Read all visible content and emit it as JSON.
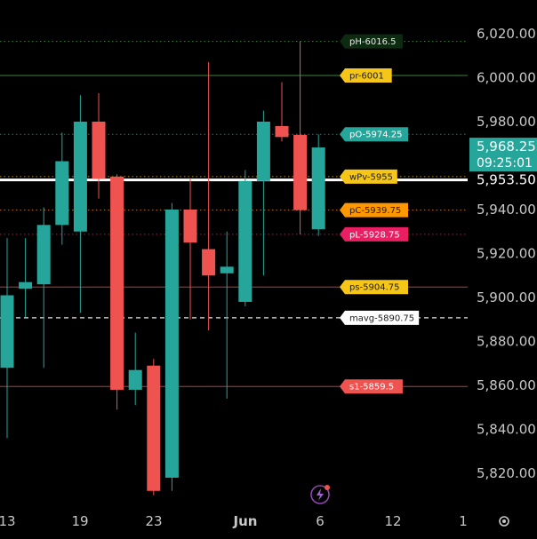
{
  "chart_data": {
    "type": "candlestick",
    "x_ticks": [
      "13",
      "19",
      "23",
      "Jun",
      "6",
      "12",
      "1"
    ],
    "y_ticks": [
      5820,
      5840,
      5860,
      5880,
      5900,
      5920,
      5940,
      5960,
      5980,
      6000,
      6020
    ],
    "y_tick_labels": [
      "5,820.00",
      "5,840.00",
      "5,860.00",
      "5,880.00",
      "5,900.00",
      "5,920.00",
      "5,940.00",
      "5,960.00",
      "5,980.00",
      "6,000.00",
      "6,020.00"
    ],
    "ylim": [
      5807,
      6040
    ],
    "up_color": "#26a69a",
    "down_color": "#ef5350",
    "candles": [
      {
        "date": "2025-05-12",
        "o": 5868,
        "h": 5927,
        "l": 5836,
        "c": 5901
      },
      {
        "date": "2025-05-13",
        "o": 5904,
        "h": 5927,
        "l": 5891,
        "c": 5907
      },
      {
        "date": "2025-05-14",
        "o": 5906,
        "h": 5941,
        "l": 5868,
        "c": 5933
      },
      {
        "date": "2025-05-15",
        "o": 5933,
        "h": 5975,
        "l": 5924,
        "c": 5962
      },
      {
        "date": "2025-05-16",
        "o": 5930,
        "h": 5992,
        "l": 5893,
        "c": 5980
      },
      {
        "date": "2025-05-19",
        "o": 5980,
        "h": 5993,
        "l": 5945,
        "c": 5954
      },
      {
        "date": "2025-05-20",
        "o": 5955,
        "h": 5956,
        "l": 5849,
        "c": 5858
      },
      {
        "date": "2025-05-21",
        "o": 5858,
        "h": 5884,
        "l": 5851,
        "c": 5867
      },
      {
        "date": "2025-05-22",
        "o": 5869,
        "h": 5872,
        "l": 5810,
        "c": 5812
      },
      {
        "date": "2025-05-23",
        "o": 5818,
        "h": 5943,
        "l": 5812,
        "c": 5940
      },
      {
        "date": "2025-05-26",
        "o": 5940,
        "h": 5954,
        "l": 5890,
        "c": 5925
      },
      {
        "date": "2025-05-27",
        "o": 5922,
        "h": 6007,
        "l": 5885,
        "c": 5910
      },
      {
        "date": "2025-05-28",
        "o": 5911,
        "h": 5930,
        "l": 5854,
        "c": 5914
      },
      {
        "date": "2025-05-29",
        "o": 5898,
        "h": 5958,
        "l": 5896,
        "c": 5953
      },
      {
        "date": "2025-05-30",
        "o": 5953,
        "h": 5985,
        "l": 5910,
        "c": 5980
      },
      {
        "date": "2025-06-02",
        "o": 5978,
        "h": 5998,
        "l": 5971,
        "c": 5973
      },
      {
        "date": "2025-06-03",
        "o": 5974,
        "h": 6016.5,
        "l": 5928.75,
        "c": 5939.75
      },
      {
        "date": "2025-06-04",
        "o": 5931,
        "h": 5974.25,
        "l": 5928,
        "c": 5968.25
      }
    ],
    "levels": [
      {
        "label": "pH-6016.5",
        "value": 6016.5,
        "color": "#4caf50",
        "style": "dotted",
        "tag_bg": "#0d2b10",
        "tag_fg": "#e8e8e8"
      },
      {
        "label": "pr-6001",
        "value": 6001,
        "color": "#4caf50",
        "style": "solid",
        "tag_bg": "#f5c518",
        "tag_fg": "#202020"
      },
      {
        "label": "pO-5974.25",
        "value": 5974.25,
        "color": "#26a69a",
        "style": "dotted",
        "tag_bg": "#26a69a",
        "tag_fg": "#ffffff"
      },
      {
        "label": "wPv-5955",
        "value": 5955,
        "color": "#f5c518",
        "style": "dotted",
        "tag_bg": "#f5c518",
        "tag_fg": "#202020"
      },
      {
        "label": "pC-5939.75",
        "value": 5939.75,
        "color": "#ff9800",
        "style": "dotted",
        "tag_bg": "#ff9800",
        "tag_fg": "#202020"
      },
      {
        "label": "pL-5928.75",
        "value": 5928.75,
        "color": "#e91e63",
        "style": "dotted",
        "tag_bg": "#e91e63",
        "tag_fg": "#ffffff"
      },
      {
        "label": "ps-5904.75",
        "value": 5904.75,
        "color": "#ef5350",
        "style": "solid",
        "tag_bg": "#f5c518",
        "tag_fg": "#202020"
      },
      {
        "label": "mavg-5890.75",
        "value": 5890.75,
        "color": "#ffffff",
        "style": "dashed",
        "tag_bg": "#ffffff",
        "tag_fg": "#202020"
      },
      {
        "label": "s1-5859.5",
        "value": 5859.5,
        "color": "#ef5350",
        "style": "solid",
        "tag_bg": "#ef5350",
        "tag_fg": "#ffffff"
      }
    ],
    "crosshair": {
      "value": 5953.5,
      "label": "5,953.50"
    },
    "current_price": {
      "value": 5968.25,
      "label": "5,968.25",
      "countdown": "09:25:01",
      "bg": "#26a69a"
    }
  }
}
